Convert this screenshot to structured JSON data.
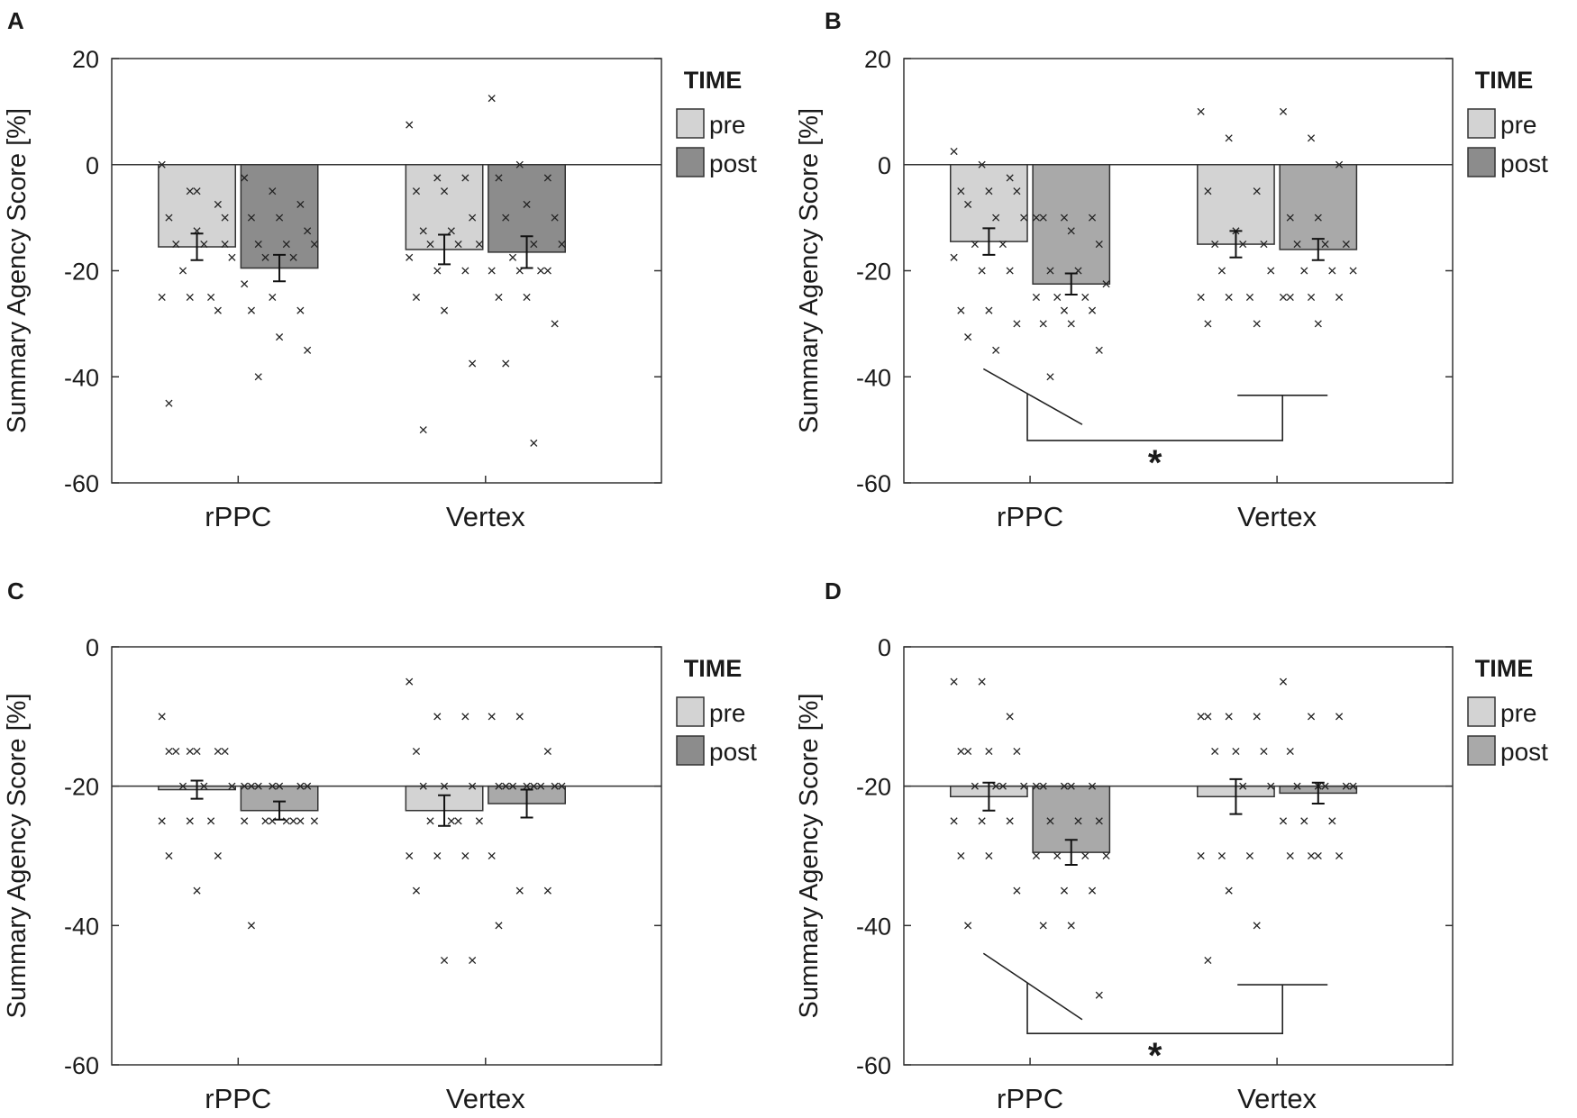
{
  "chart_data": [
    {
      "panel": "A",
      "type": "bar",
      "ylabel": "Summary Agency Score [%]",
      "ylim": [
        -60,
        20
      ],
      "yticks": [
        "20",
        "0",
        "-20",
        "-40",
        "-60"
      ],
      "categories": [
        "rPPC",
        "Vertex"
      ],
      "legend": {
        "title": "TIME",
        "entries": [
          "pre",
          "post"
        ],
        "colors": [
          "#d3d3d3",
          "#8c8c8c"
        ]
      },
      "series": [
        {
          "name": "pre",
          "color": "#d3d3d3",
          "values": [
            -15.5,
            -16.0
          ],
          "errors": [
            2.5,
            2.8
          ]
        },
        {
          "name": "post",
          "color": "#8c8c8c",
          "values": [
            -19.5,
            -16.5
          ],
          "errors": [
            2.5,
            3.0
          ]
        }
      ],
      "points": [
        [
          0,
          -5,
          -7.5,
          -10,
          -12.5,
          -15,
          -15,
          -15,
          -17.5,
          -20,
          -25,
          -25,
          -25,
          -27.5,
          -45,
          -5,
          -10
        ],
        [
          -2.5,
          -5,
          -7.5,
          -10,
          -10,
          -12.5,
          -15,
          -15,
          -15,
          -17.5,
          -17.5,
          -22.5,
          -25,
          -27.5,
          -27.5,
          -32.5,
          -35,
          -40
        ],
        [
          7.5,
          -2.5,
          -2.5,
          -5,
          -5,
          -10,
          -12.5,
          -12.5,
          -15,
          -15,
          -15,
          -17.5,
          -20,
          -20,
          -25,
          -27.5,
          -37.5,
          -50
        ],
        [
          12.5,
          0,
          -2.5,
          -2.5,
          -7.5,
          -10,
          -10,
          -15,
          -15,
          -17.5,
          -20,
          -20,
          -20,
          -20,
          -25,
          -25,
          -30,
          -37.5,
          -52.5
        ]
      ],
      "significance": null
    },
    {
      "panel": "B",
      "type": "bar",
      "ylabel": "Summary Agency Score [%]",
      "ylim": [
        -60,
        20
      ],
      "yticks": [
        "20",
        "0",
        "-20",
        "-40",
        "-60"
      ],
      "categories": [
        "rPPC",
        "Vertex"
      ],
      "legend": {
        "title": "TIME",
        "entries": [
          "pre",
          "post"
        ],
        "colors": [
          "#d3d3d3",
          "#8c8c8c"
        ]
      },
      "series": [
        {
          "name": "pre",
          "color": "#d3d3d3",
          "values": [
            -14.5,
            -15.0
          ],
          "errors": [
            2.5,
            2.5
          ]
        },
        {
          "name": "post",
          "color": "#a9a9a9",
          "values": [
            -22.5,
            -16.0
          ],
          "errors": [
            2.0,
            2.0
          ]
        }
      ],
      "points": [
        [
          2.5,
          0,
          -2.5,
          -5,
          -5,
          -5,
          -7.5,
          -10,
          -10,
          -15,
          -15,
          -17.5,
          -20,
          -20,
          -27.5,
          -27.5,
          -30,
          -32.5,
          -35
        ],
        [
          -10,
          -10,
          -10,
          -10,
          -12.5,
          -15,
          -20,
          -20,
          -22.5,
          -25,
          -25,
          -25,
          -27.5,
          -27.5,
          -30,
          -30,
          -35,
          -40
        ],
        [
          10,
          5,
          -5,
          -5,
          -12.5,
          -15,
          -15,
          -15,
          -20,
          -20,
          -25,
          -25,
          -25,
          -30,
          -30
        ],
        [
          10,
          5,
          0,
          -10,
          -10,
          -15,
          -15,
          -15,
          -20,
          -20,
          -20,
          -25,
          -25,
          -25,
          -25,
          -30
        ]
      ],
      "significance": {
        "label": "*"
      }
    },
    {
      "panel": "C",
      "type": "bar",
      "ylabel": "Summary Agency Score [%]",
      "ylim": [
        -60,
        0
      ],
      "yticks": [
        "0",
        "-20",
        "-40",
        "-60"
      ],
      "categories": [
        "rPPC",
        "Vertex"
      ],
      "legend": {
        "title": "TIME",
        "entries": [
          "pre",
          "post"
        ],
        "colors": [
          "#d3d3d3",
          "#8c8c8c"
        ]
      },
      "series": [
        {
          "name": "pre",
          "color": "#d3d3d3",
          "values": [
            -20.5,
            -23.5
          ],
          "errors": [
            1.3,
            2.2
          ]
        },
        {
          "name": "post",
          "color": "#a9a9a9",
          "values": [
            -23.5,
            -22.5
          ],
          "errors": [
            1.3,
            2.0
          ]
        }
      ],
      "points": [
        [
          -10,
          -15,
          -15,
          -15,
          -15,
          -15,
          -15,
          -20,
          -20,
          -20,
          -25,
          -25,
          -25,
          -30,
          -30,
          -35
        ],
        [
          -20,
          -20,
          -20,
          -20,
          -20,
          -20,
          -20,
          -25,
          -25,
          -25,
          -25,
          -25,
          -25,
          -25,
          -40
        ],
        [
          -5,
          -10,
          -10,
          -15,
          -20,
          -20,
          -20,
          -25,
          -25,
          -25,
          -25,
          -30,
          -30,
          -30,
          -35,
          -45,
          -45
        ],
        [
          -10,
          -10,
          -15,
          -20,
          -20,
          -20,
          -20,
          -20,
          -20,
          -20,
          -20,
          -30,
          -35,
          -35,
          -40
        ]
      ],
      "significance": null
    },
    {
      "panel": "D",
      "type": "bar",
      "ylabel": "Summary Agency Score [%]",
      "ylim": [
        -60,
        0
      ],
      "yticks": [
        "0",
        "-20",
        "-40",
        "-60"
      ],
      "categories": [
        "rPPC",
        "Vertex"
      ],
      "legend": {
        "title": "TIME",
        "entries": [
          "pre",
          "post"
        ],
        "colors": [
          "#d3d3d3",
          "#a9a9a9"
        ]
      },
      "series": [
        {
          "name": "pre",
          "color": "#d3d3d3",
          "values": [
            -21.5,
            -21.5
          ],
          "errors": [
            2.0,
            2.5
          ]
        },
        {
          "name": "post",
          "color": "#a9a9a9",
          "values": [
            -29.5,
            -21.0
          ],
          "errors": [
            1.8,
            1.5
          ]
        }
      ],
      "points": [
        [
          -5,
          -5,
          -10,
          -15,
          -15,
          -15,
          -15,
          -20,
          -20,
          -20,
          -20,
          -25,
          -25,
          -25,
          -30,
          -30,
          -35,
          -40
        ],
        [
          -20,
          -20,
          -20,
          -20,
          -20,
          -25,
          -25,
          -25,
          -30,
          -30,
          -30,
          -30,
          -35,
          -35,
          -40,
          -40,
          -50
        ],
        [
          -10,
          -10,
          -10,
          -10,
          -15,
          -15,
          -15,
          -20,
          -20,
          -30,
          -30,
          -30,
          -35,
          -40,
          -45
        ],
        [
          -5,
          -10,
          -10,
          -15,
          -20,
          -20,
          -20,
          -20,
          -20,
          -25,
          -25,
          -25,
          -30,
          -30,
          -30,
          -30
        ]
      ],
      "significance": {
        "label": "*"
      }
    }
  ]
}
